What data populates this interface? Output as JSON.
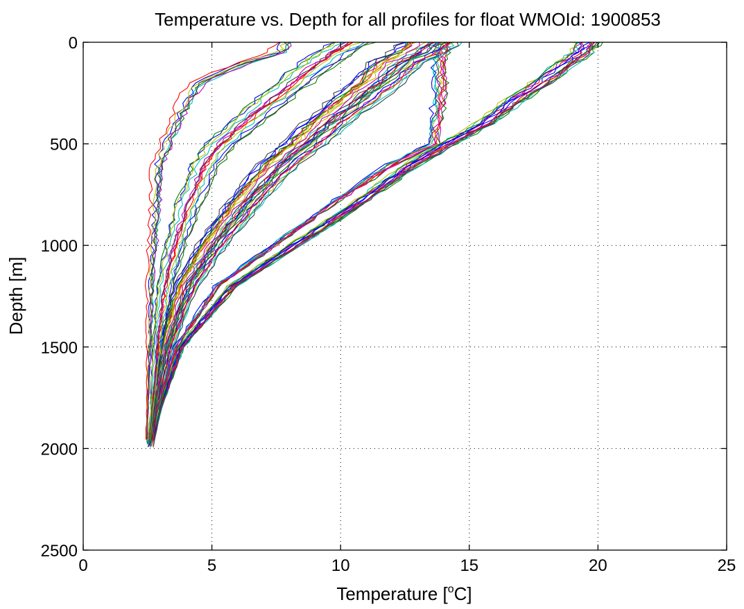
{
  "chart_data": {
    "type": "line",
    "title": "Temperature vs. Depth for all profiles for float WMOId: 1900853",
    "xlabel": "Temperature [°C]",
    "xlabel_main": "Temperature [",
    "xlabel_super": "o",
    "xlabel_end": "C]",
    "ylabel": "Depth [m]",
    "xlim": [
      0,
      25
    ],
    "ylim": [
      0,
      2500
    ],
    "y_reversed": true,
    "grid": true,
    "x_ticks": [
      0,
      5,
      10,
      15,
      20,
      25
    ],
    "y_ticks": [
      0,
      500,
      1000,
      1500,
      2000,
      2500
    ],
    "x_tick_labels": [
      "0",
      "5",
      "10",
      "15",
      "20",
      "25"
    ],
    "y_tick_labels": [
      "0",
      "500",
      "1000",
      "1500",
      "2000",
      "2500"
    ],
    "series_colors": [
      "#0000ff",
      "#008000",
      "#ff0000",
      "#00bfbf",
      "#bf00bf",
      "#bfbf00",
      "#404040"
    ],
    "depth_levels": [
      0,
      50,
      100,
      200,
      300,
      400,
      500,
      600,
      800,
      1000,
      1200,
      1500,
      1800,
      1980
    ],
    "profile_groups": [
      {
        "description": "warm surface, strong thermocline",
        "count": 16,
        "jitter": 0.45,
        "temperatures": [
          19.6,
          19.4,
          18.8,
          17.8,
          16.6,
          15.6,
          14.2,
          12.8,
          10.6,
          8.2,
          5.8,
          3.8,
          3.0,
          2.7
        ]
      },
      {
        "description": "warm surface, shallow isothermal layer near 13.8",
        "count": 10,
        "jitter": 0.25,
        "temperatures": [
          14.0,
          13.9,
          13.9,
          13.85,
          13.8,
          13.7,
          13.6,
          12.0,
          9.6,
          7.4,
          5.2,
          3.6,
          2.9,
          2.6
        ]
      },
      {
        "description": "intermediate profiles",
        "count": 30,
        "jitter": 1.2,
        "temperatures": [
          13.5,
          13.0,
          12.2,
          11.4,
          10.4,
          9.4,
          8.6,
          7.6,
          6.2,
          5.0,
          4.0,
          3.2,
          2.8,
          2.6
        ]
      },
      {
        "description": "cold intermediate profiles",
        "count": 14,
        "jitter": 0.9,
        "temperatures": [
          10.5,
          9.8,
          9.2,
          8.2,
          7.2,
          6.3,
          5.4,
          4.8,
          4.1,
          3.6,
          3.2,
          2.9,
          2.7,
          2.55
        ]
      },
      {
        "description": "cold profiles with surface layer",
        "count": 7,
        "jitter": 0.35,
        "temperatures": [
          7.8,
          7.6,
          6.2,
          4.4,
          3.9,
          3.5,
          3.2,
          2.9,
          2.8,
          2.7,
          2.6,
          2.55,
          2.5,
          2.45
        ]
      }
    ]
  }
}
